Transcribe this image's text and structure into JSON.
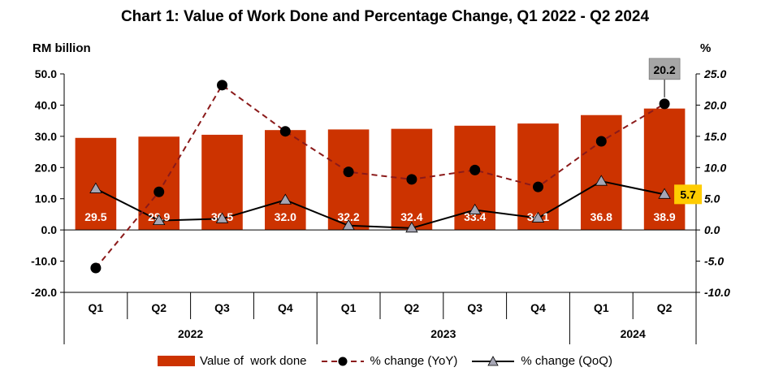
{
  "title": "Chart 1: Value of Work Done and Percentage Change, Q1 2022 - Q2 2024",
  "chart_data": {
    "type": "bar",
    "title": "Chart 1: Value of Work Done and Percentage Change, Q1 2022 - Q2 2024",
    "ylabel_left": "RM billion",
    "ylabel_right": "%",
    "ylim_left": [
      -20,
      50
    ],
    "ylim_right": [
      -10,
      25
    ],
    "yticks_left": [
      "50.0",
      "40.0",
      "30.0",
      "20.0",
      "10.0",
      "0.0",
      "-10.0",
      "-20.0"
    ],
    "yticks_right": [
      "25.0",
      "20.0",
      "15.0",
      "10.0",
      "5.0",
      "0.0",
      "-5.0",
      "-10.0"
    ],
    "categories": [
      "Q1",
      "Q2",
      "Q3",
      "Q4",
      "Q1",
      "Q2",
      "Q3",
      "Q4",
      "Q1",
      "Q2"
    ],
    "years": [
      {
        "label": "2022",
        "count": 4
      },
      {
        "label": "2023",
        "count": 4
      },
      {
        "label": "2024",
        "count": 2
      }
    ],
    "series": [
      {
        "name": "Value of  work done",
        "type": "bar",
        "axis": "left",
        "color": "#cc3300",
        "values": [
          29.5,
          29.9,
          30.5,
          32.0,
          32.2,
          32.4,
          33.4,
          34.1,
          36.8,
          38.9
        ],
        "labels": [
          "29.5",
          "29.9",
          "30.5",
          "32.0",
          "32.2",
          "32.4",
          "33.4",
          "34.1",
          "36.8",
          "38.9"
        ]
      },
      {
        "name": "% change (YoY)",
        "type": "line",
        "axis": "right",
        "color": "#8b1a1a",
        "values": [
          -6.1,
          6.1,
          23.2,
          15.8,
          9.3,
          8.1,
          9.6,
          6.9,
          14.2,
          20.2
        ]
      },
      {
        "name": "% change (QoQ)",
        "type": "line",
        "axis": "right",
        "color": "#000000",
        "values": [
          6.6,
          1.5,
          1.8,
          4.8,
          0.7,
          0.3,
          3.2,
          1.9,
          7.8,
          5.7
        ]
      }
    ],
    "annotations": [
      {
        "series": "% change (YoY)",
        "index": 9,
        "text": "20.2",
        "bg": "#a6a6a6"
      },
      {
        "series": "% change (QoQ)",
        "index": 9,
        "text": "5.7",
        "bg": "#ffcc00"
      }
    ],
    "legend_position": "bottom"
  }
}
